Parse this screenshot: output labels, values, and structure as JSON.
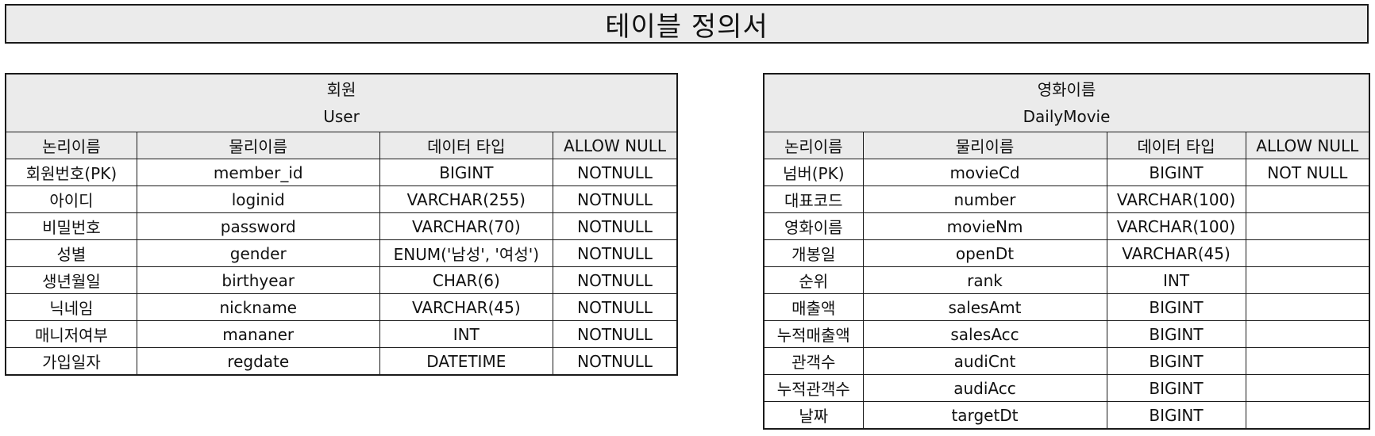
{
  "page": {
    "title": "테이블 정의서"
  },
  "columns": [
    "논리이름",
    "물리이름",
    "데이터 타입",
    "ALLOW NULL"
  ],
  "tables": [
    {
      "logical_name": "회원",
      "physical_name": "User",
      "rows": [
        [
          "회원번호(PK)",
          "member_id",
          "BIGINT",
          "NOTNULL"
        ],
        [
          "아이디",
          "loginid",
          "VARCHAR(255)",
          "NOTNULL"
        ],
        [
          "비밀번호",
          "password",
          "VARCHAR(70)",
          "NOTNULL"
        ],
        [
          "성별",
          "gender",
          "ENUM('남성', '여성')",
          "NOTNULL"
        ],
        [
          "생년월일",
          "birthyear",
          "CHAR(6)",
          "NOTNULL"
        ],
        [
          "닉네임",
          "nickname",
          "VARCHAR(45)",
          "NOTNULL"
        ],
        [
          "매니저여부",
          "mananer",
          "INT",
          "NOTNULL"
        ],
        [
          "가입일자",
          "regdate",
          "DATETIME",
          "NOTNULL"
        ]
      ]
    },
    {
      "logical_name": "영화이름",
      "physical_name": "DailyMovie",
      "rows": [
        [
          "넘버(PK)",
          "movieCd",
          "BIGINT",
          "NOT NULL"
        ],
        [
          "대표코드",
          "number",
          "VARCHAR(100)",
          ""
        ],
        [
          "영화이름",
          "movieNm",
          "VARCHAR(100)",
          ""
        ],
        [
          "개봉일",
          "openDt",
          "VARCHAR(45)",
          ""
        ],
        [
          "순위",
          "rank",
          "INT",
          ""
        ],
        [
          "매출액",
          "salesAmt",
          "BIGINT",
          ""
        ],
        [
          "누적매출액",
          "salesAcc",
          "BIGINT",
          ""
        ],
        [
          "관객수",
          "audiCnt",
          "BIGINT",
          ""
        ],
        [
          "누적관객수",
          "audiAcc",
          "BIGINT",
          ""
        ],
        [
          "날짜",
          "targetDt",
          "BIGINT",
          ""
        ]
      ]
    }
  ]
}
